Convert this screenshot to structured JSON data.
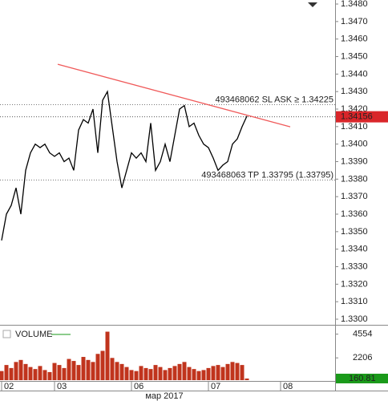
{
  "chart_data": [
    {
      "type": "line",
      "color": "#000000",
      "values": [
        1.3345,
        1.336,
        1.3365,
        1.3375,
        1.336,
        1.3385,
        1.3395,
        1.34,
        1.3398,
        1.34,
        1.3395,
        1.3393,
        1.3395,
        1.339,
        1.3392,
        1.3385,
        1.3408,
        1.3414,
        1.3412,
        1.342,
        1.3395,
        1.3425,
        1.343,
        1.341,
        1.339,
        1.3375,
        1.3385,
        1.3395,
        1.3392,
        1.3395,
        1.339,
        1.3412,
        1.3385,
        1.339,
        1.34,
        1.339,
        1.3405,
        1.342,
        1.3422,
        1.341,
        1.3412,
        1.3405,
        1.34,
        1.3398,
        1.3392,
        1.3385,
        1.3388,
        1.339,
        1.34,
        1.3403,
        1.341,
        1.3416,
        null,
        null,
        null,
        null,
        null,
        null,
        null
      ],
      "ylim": [
        1.32968,
        1.34823
      ],
      "yticks": [
        {
          "value": 1.33,
          "label": "1.3300"
        },
        {
          "value": 1.331,
          "label": "1.3310"
        },
        {
          "value": 1.332,
          "label": "1.3320"
        },
        {
          "value": 1.333,
          "label": "1.3330"
        },
        {
          "value": 1.334,
          "label": "1.3340"
        },
        {
          "value": 1.335,
          "label": "1.3350"
        },
        {
          "value": 1.336,
          "label": "1.3360"
        },
        {
          "value": 1.337,
          "label": "1.3370"
        },
        {
          "value": 1.338,
          "label": "1.3380"
        },
        {
          "value": 1.339,
          "label": "1.3390"
        },
        {
          "value": 1.34,
          "label": "1.3400"
        },
        {
          "value": 1.341,
          "label": "1.3410"
        },
        {
          "value": 1.342,
          "label": "1.3420"
        },
        {
          "value": 1.343,
          "label": "1.3430"
        },
        {
          "value": 1.344,
          "label": "1.3440"
        },
        {
          "value": 1.345,
          "label": "1.3450"
        },
        {
          "value": 1.346,
          "label": "1.3460"
        },
        {
          "value": 1.347,
          "label": "1.3470"
        },
        {
          "value": 1.348,
          "label": "1.3480"
        }
      ],
      "levels": [
        {
          "value": 1.34225,
          "label": "493468062 SL ASK ≥ 1.34225"
        },
        {
          "value": 1.33795,
          "label": "493468063 TP 1.33795 (1.33795)"
        }
      ],
      "last_value": 1.34156,
      "last_color": "#d9262a",
      "trendline": {
        "x": [
          11.67,
          60
        ],
        "y": [
          1.34456,
          1.34099
        ],
        "color": "#f05a5a"
      }
    },
    {
      "type": "bar",
      "categories": [
        "02",
        null,
        null,
        null,
        null,
        null,
        null,
        null,
        null,
        null,
        null,
        "03",
        null,
        null,
        null,
        null,
        null,
        null,
        null,
        null,
        null,
        null,
        null,
        null,
        null,
        null,
        null,
        "06",
        null,
        null,
        null,
        null,
        null,
        null,
        null,
        null,
        null,
        null,
        null,
        null,
        null,
        null,
        null,
        "07",
        null,
        null,
        null,
        null,
        null,
        null,
        null,
        null,
        null,
        null,
        null,
        null,
        null,
        null,
        "08"
      ],
      "series": [
        {
          "name": "VOLUME",
          "color": "#c0341d",
          "values": [
            900,
            1500,
            1200,
            1800,
            2000,
            1600,
            1300,
            1100,
            1400,
            1000,
            800,
            1700,
            1500,
            1200,
            2100,
            1900,
            1500,
            2300,
            2000,
            1800,
            2600,
            2900,
            4800,
            2200,
            1800,
            1600,
            1300,
            1000,
            900,
            1400,
            1200,
            1100,
            1500,
            1300,
            1000,
            1200,
            1400,
            1600,
            1800,
            1300,
            1100,
            900,
            1000,
            1200,
            1400,
            1500,
            1300,
            1600,
            1800,
            1700,
            1500,
            160.81,
            null,
            null,
            null,
            null,
            null,
            null,
            null
          ]
        }
      ],
      "ylim": [
        0,
        5400
      ],
      "yticks": [
        2206,
        4554
      ],
      "last_value": 160.81,
      "last_color": "#1a9a1a",
      "xlabel": "мар 2017"
    }
  ]
}
